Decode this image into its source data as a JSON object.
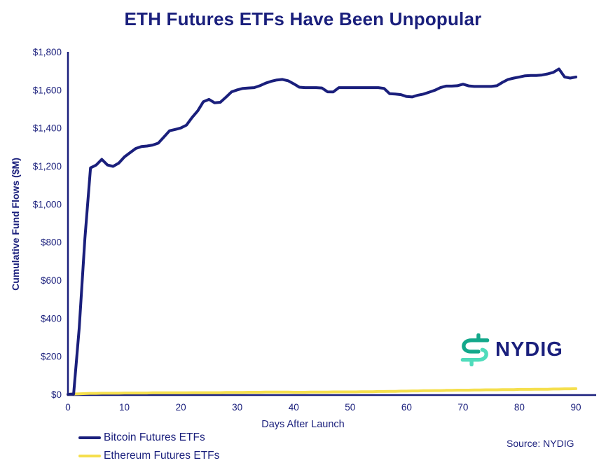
{
  "title": "ETH Futures ETFs Have Been Unpopular",
  "source": "Source: NYDIG",
  "logo": {
    "text": "NYDIG",
    "icon": "stylized-dollar-sign"
  },
  "colors": {
    "navy": "#1A1F7C",
    "yellow": "#F5DF4D",
    "logo_teal_dark": "#13A88B",
    "logo_teal_light": "#4FDCBB",
    "background": "#FFFFFF"
  },
  "chart_data": {
    "type": "line",
    "title": "ETH Futures ETFs Have Been Unpopular",
    "xlabel": "Days After Launch",
    "ylabel": "Cumulative Fund Flows ($M)",
    "xlim": [
      0,
      90
    ],
    "ylim": [
      0,
      1800
    ],
    "grid": false,
    "legend_position": "bottom-left",
    "x_ticks": {
      "values": [
        0,
        10,
        20,
        30,
        40,
        50,
        60,
        70,
        80,
        90
      ],
      "labels": [
        "0",
        "10",
        "20",
        "30",
        "40",
        "50",
        "60",
        "70",
        "80",
        "90"
      ]
    },
    "y_ticks": {
      "values": [
        0,
        200,
        400,
        600,
        800,
        1000,
        1200,
        1400,
        1600,
        1800
      ],
      "labels": [
        "$0",
        "$200",
        "$400",
        "$600",
        "$800",
        "$1,000",
        "$1,200",
        "$1,400",
        "$1,600",
        "$1,800"
      ]
    },
    "x_mode": "one value per day, index 0..90",
    "series": [
      {
        "name": "Bitcoin Futures ETFs",
        "color": "#1A1F7C",
        "values": [
          0,
          2,
          350,
          820,
          1190,
          1205,
          1235,
          1205,
          1198,
          1215,
          1248,
          1270,
          1292,
          1302,
          1305,
          1310,
          1320,
          1352,
          1385,
          1392,
          1400,
          1415,
          1455,
          1490,
          1538,
          1550,
          1532,
          1535,
          1562,
          1590,
          1600,
          1608,
          1610,
          1612,
          1622,
          1635,
          1645,
          1652,
          1655,
          1648,
          1632,
          1614,
          1612,
          1612,
          1612,
          1610,
          1590,
          1589,
          1612,
          1612,
          1612,
          1612,
          1612,
          1612,
          1612,
          1612,
          1608,
          1580,
          1578,
          1575,
          1565,
          1563,
          1572,
          1578,
          1588,
          1598,
          1612,
          1620,
          1620,
          1622,
          1630,
          1621,
          1618,
          1618,
          1618,
          1618,
          1622,
          1640,
          1655,
          1662,
          1668,
          1674,
          1676,
          1676,
          1678,
          1684,
          1692,
          1710,
          1668,
          1662,
          1668
        ]
      },
      {
        "name": "Ethereum Futures ETFs",
        "color": "#F5DF4D",
        "values": [
          0,
          2,
          3,
          4,
          5,
          5,
          6,
          6,
          6,
          6,
          7,
          7,
          7,
          7,
          7,
          8,
          8,
          8,
          8,
          8,
          8,
          8,
          9,
          9,
          9,
          9,
          9,
          9,
          10,
          10,
          10,
          10,
          11,
          11,
          11,
          12,
          12,
          12,
          12,
          12,
          11,
          11,
          11,
          12,
          12,
          12,
          12,
          13,
          13,
          13,
          13,
          13,
          14,
          14,
          14,
          15,
          15,
          16,
          16,
          17,
          17,
          18,
          18,
          19,
          19,
          20,
          20,
          21,
          21,
          22,
          22,
          22,
          23,
          23,
          24,
          24,
          24,
          25,
          25,
          25,
          26,
          26,
          26,
          27,
          27,
          27,
          28,
          28,
          29,
          29,
          30
        ]
      }
    ]
  }
}
